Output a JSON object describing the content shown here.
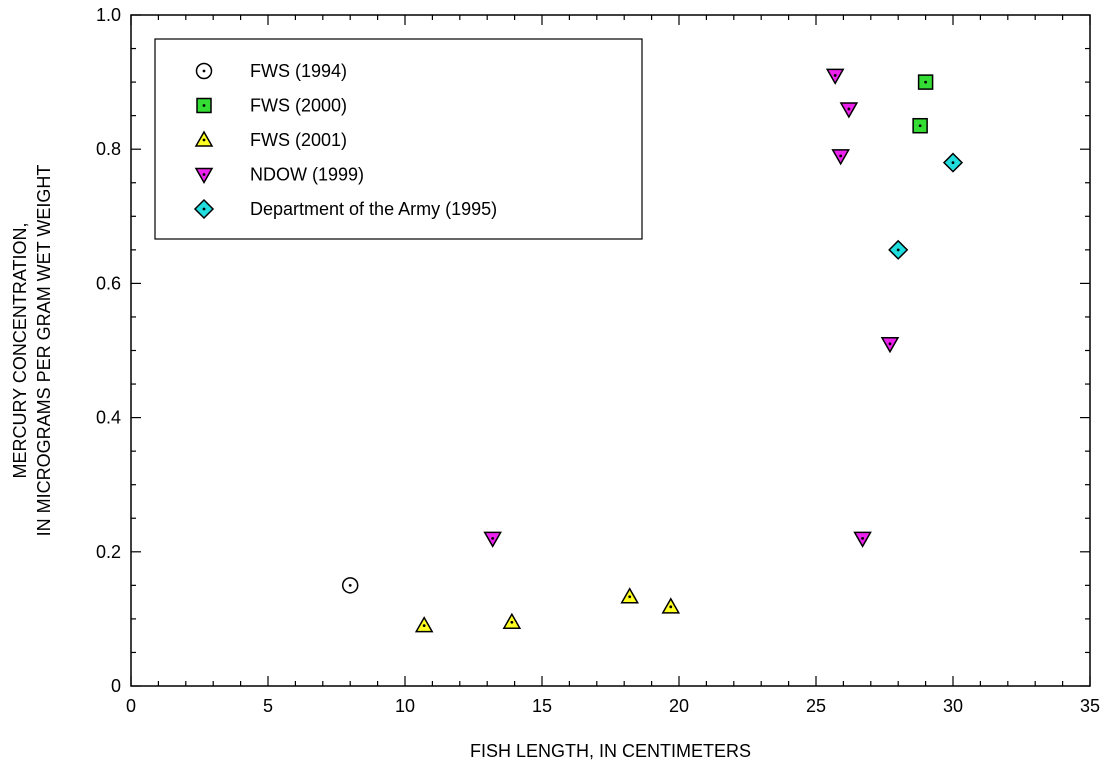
{
  "chart_data": {
    "type": "scatter",
    "xlabel": "FISH LENGTH, IN CENTIMETERS",
    "ylabel_lines": [
      "MERCURY CONCENTRATION,",
      "IN MICROGRAMS PER GRAM WET WEIGHT"
    ],
    "xlim": [
      0,
      35
    ],
    "ylim": [
      0,
      1.0
    ],
    "x_ticks": [
      0,
      5,
      10,
      15,
      20,
      25,
      30,
      35
    ],
    "x_tick_labels": [
      "0",
      "5",
      "10",
      "15",
      "20",
      "25",
      "30",
      "35"
    ],
    "y_ticks": [
      0,
      0.2,
      0.4,
      0.6,
      0.8,
      1.0
    ],
    "y_tick_labels": [
      "0",
      "0.2",
      "0.4",
      "0.6",
      "0.8",
      "1.0"
    ],
    "grid": false,
    "legend_position": "top-left",
    "series": [
      {
        "name": "FWS (1994)",
        "marker": "circle",
        "color": "#ffffff",
        "points": [
          {
            "x": 8.0,
            "y": 0.15
          }
        ]
      },
      {
        "name": "FWS (2000)",
        "marker": "square",
        "color": "#33dd33",
        "points": [
          {
            "x": 29.0,
            "y": 0.9
          },
          {
            "x": 28.8,
            "y": 0.835
          }
        ]
      },
      {
        "name": "FWS (2001)",
        "marker": "triangle-up",
        "color": "#ffff22",
        "points": [
          {
            "x": 10.7,
            "y": 0.09
          },
          {
            "x": 13.9,
            "y": 0.095
          },
          {
            "x": 18.2,
            "y": 0.133
          },
          {
            "x": 19.7,
            "y": 0.118
          }
        ]
      },
      {
        "name": "NDOW (1999)",
        "marker": "triangle-down",
        "color": "#ee22ee",
        "points": [
          {
            "x": 25.7,
            "y": 0.91
          },
          {
            "x": 26.2,
            "y": 0.86
          },
          {
            "x": 25.9,
            "y": 0.79
          },
          {
            "x": 27.7,
            "y": 0.51
          },
          {
            "x": 13.2,
            "y": 0.22
          },
          {
            "x": 26.7,
            "y": 0.22
          }
        ]
      },
      {
        "name": "Department of the Army (1995)",
        "marker": "diamond",
        "color": "#22dddd",
        "points": [
          {
            "x": 30.0,
            "y": 0.78
          },
          {
            "x": 28.0,
            "y": 0.65
          }
        ]
      }
    ]
  }
}
